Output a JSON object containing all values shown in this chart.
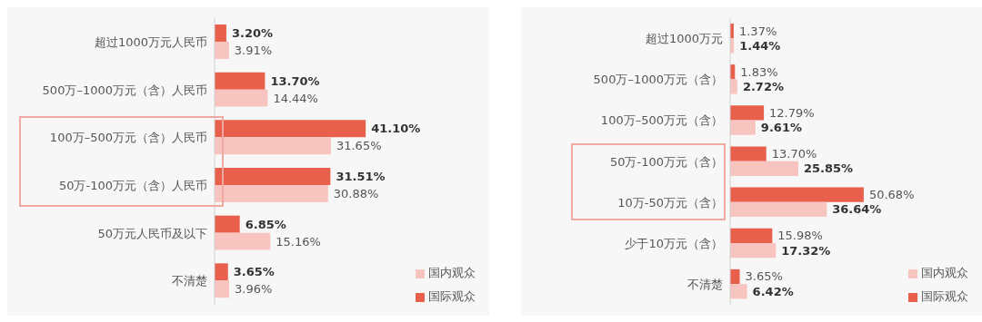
{
  "chart_data": [
    {
      "type": "bar",
      "orientation": "horizontal",
      "legend": "bottom right",
      "categories": [
        "超过1000万元人民币",
        "500万–1000万元（含）人民币",
        "100万–500万元（含）人民币",
        "50万-100万元（含）人民币",
        "50万元人民币及以下",
        "不清楚"
      ],
      "series": [
        {
          "name": "国际观众",
          "color": "#e8604c",
          "values": [
            3.2,
            13.7,
            41.1,
            31.51,
            6.85,
            3.65
          ],
          "value_labels": [
            "3.20%",
            "13.70%",
            "41.10%",
            "31.51%",
            "6.85%",
            "3.65%"
          ]
        },
        {
          "name": "国内观众",
          "color": "#f7c4c0",
          "values": [
            3.91,
            14.44,
            31.65,
            30.88,
            15.16,
            3.96
          ],
          "value_labels": [
            "3.91%",
            "14.44%",
            "31.65%",
            "30.88%",
            "15.16%",
            "3.96%"
          ]
        }
      ]
    },
    {
      "type": "bar",
      "orientation": "horizontal",
      "legend": "bottom right",
      "categories": [
        "超过1000万元",
        "500万–1000万元（含）",
        "100万–500万元（含）",
        "50万-100万元（含）",
        "10万-50万元（含）",
        "少于10万元（含）",
        "不清楚"
      ],
      "series": [
        {
          "name": "国际观众",
          "color": "#e8604c",
          "values": [
            1.37,
            1.83,
            12.79,
            13.7,
            50.68,
            15.98,
            3.65
          ],
          "value_labels": [
            "1.37%",
            "1.83%",
            "12.79%",
            "13.70%",
            "50.68%",
            "15.98%",
            "3.65%"
          ]
        },
        {
          "name": "国内观众",
          "color": "#f7c4c0",
          "values": [
            1.44,
            2.72,
            9.61,
            25.85,
            36.64,
            17.32,
            6.42
          ],
          "value_labels": [
            "1.44%",
            "2.72%",
            "9.61%",
            "25.85%",
            "36.64%",
            "17.32%",
            "6.42%"
          ]
        }
      ]
    }
  ]
}
